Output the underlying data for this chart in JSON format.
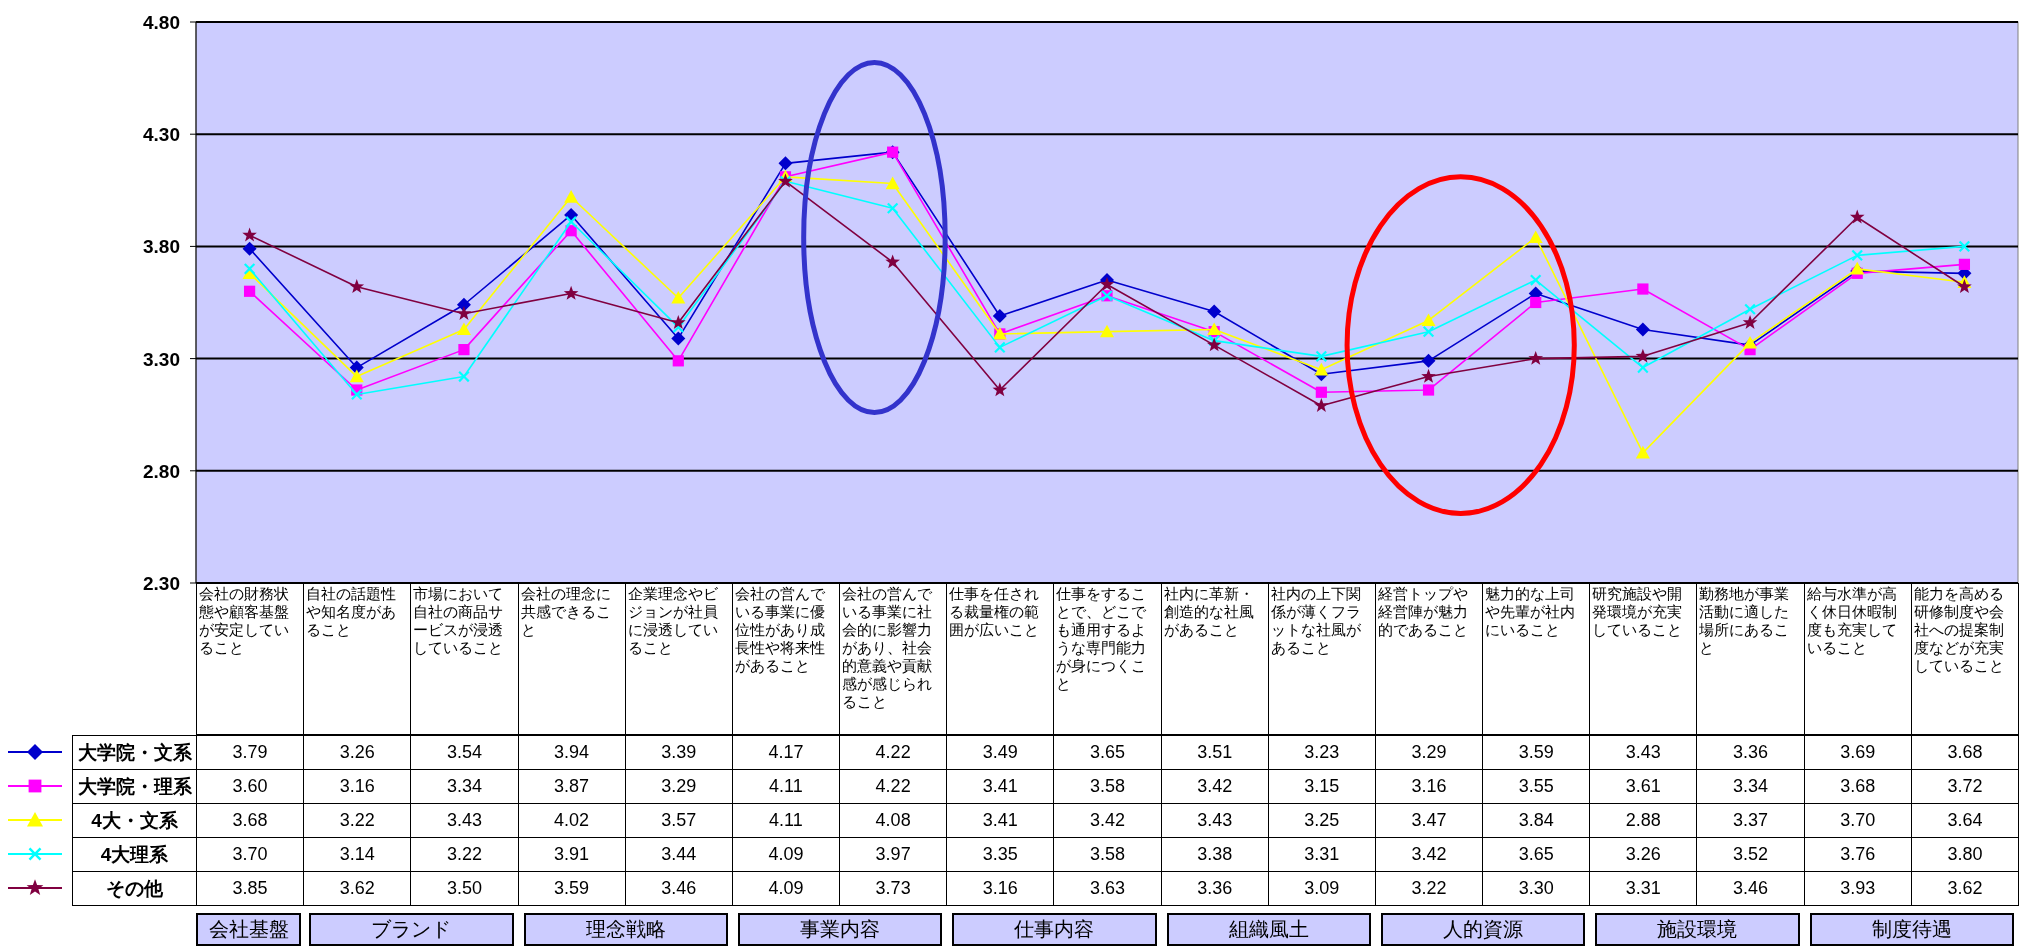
{
  "chart_data": {
    "type": "line",
    "categories": [
      "会社の財務状態や顧客基盤が安定していること",
      "自社の話題性や知名度があること",
      "市場において自社の商品サービスが浸透していること",
      "会社の理念に共感できること",
      "企業理念やビジョンが社員に浸透していること",
      "会社の営んでいる事業に優位性があり成長性や将来性があること",
      "会社の営んでいる事業に社会的に影響力があり、社会的意義や貢献感が感じられること",
      "仕事を任される裁量権の範囲が広いこと",
      "仕事をすることで、どこでも通用するような専門能力が身につくこと",
      "社内に革新・創造的な社風があること",
      "社内の上下関係が薄くフラットな社風があること",
      "経営トップや経営陣が魅力的であること",
      "魅力的な上司や先輩が社内にいること",
      "研究施設や開発環境が充実していること",
      "勤務地が事業活動に適した場所にあること",
      "給与水準が高く休日休暇制度も充実していること",
      "能力を高める研修制度や会社への提案制度などが充実していること"
    ],
    "series": [
      {
        "name": "大学院・文系",
        "color": "#0000cc",
        "marker": "diamond",
        "values": [
          3.79,
          3.26,
          3.54,
          3.94,
          3.39,
          4.17,
          4.22,
          3.49,
          3.65,
          3.51,
          3.23,
          3.29,
          3.59,
          3.43,
          3.36,
          3.69,
          3.68
        ],
        "value_labels": [
          "3.79",
          "3.26",
          "3.54",
          "3.94",
          "3.39",
          "4.17",
          "4.22",
          "3.49",
          "3.65",
          "3.51",
          "3.23",
          "3.29",
          "3.59",
          "3.43",
          "3.36",
          "3.69",
          "3.68"
        ]
      },
      {
        "name": "大学院・理系",
        "color": "#ff00ff",
        "marker": "square",
        "values": [
          3.6,
          3.16,
          3.34,
          3.87,
          3.29,
          4.11,
          4.22,
          3.41,
          3.58,
          3.42,
          3.15,
          3.16,
          3.55,
          3.61,
          3.34,
          3.68,
          3.72
        ],
        "value_labels": [
          "3.60",
          "3.16",
          "3.34",
          "3.87",
          "3.29",
          "4.11",
          "4.22",
          "3.41",
          "3.58",
          "3.42",
          "3.15",
          "3.16",
          "3.55",
          "3.61",
          "3.34",
          "3.68",
          "3.72"
        ]
      },
      {
        "name": "4大・文系",
        "color": "#ffff00",
        "marker": "triangle",
        "values": [
          3.68,
          3.22,
          3.43,
          4.02,
          3.57,
          4.11,
          4.08,
          3.41,
          3.42,
          3.43,
          3.25,
          3.47,
          3.84,
          2.88,
          3.37,
          3.7,
          3.64
        ],
        "value_labels": [
          "3.68",
          "3.22",
          "3.43",
          "4.02",
          "3.57",
          "4.11",
          "4.08",
          "3.41",
          "3.42",
          "3.43",
          "3.25",
          "3.47",
          "3.84",
          "2.88",
          "3.37",
          "3.70",
          "3.64"
        ]
      },
      {
        "name": "4大理系",
        "color": "#00ffff",
        "marker": "cross",
        "values": [
          3.7,
          3.14,
          3.22,
          3.91,
          3.44,
          4.09,
          3.97,
          3.35,
          3.58,
          3.38,
          3.31,
          3.42,
          3.65,
          3.26,
          3.52,
          3.76,
          3.8
        ],
        "value_labels": [
          "3.70",
          "3.14",
          "3.22",
          "3.91",
          "3.44",
          "4.09",
          "3.97",
          "3.35",
          "3.58",
          "3.38",
          "3.31",
          "3.42",
          "3.65",
          "3.26",
          "3.52",
          "3.76",
          "3.80"
        ]
      },
      {
        "name": "その他",
        "color": "#800040",
        "marker": "star",
        "values": [
          3.85,
          3.62,
          3.5,
          3.59,
          3.46,
          4.09,
          3.73,
          3.16,
          3.63,
          3.36,
          3.09,
          3.22,
          3.3,
          3.31,
          3.46,
          3.93,
          3.62
        ],
        "value_labels": [
          "3.85",
          "3.62",
          "3.50",
          "3.59",
          "3.46",
          "4.09",
          "3.73",
          "3.16",
          "3.63",
          "3.36",
          "3.09",
          "3.22",
          "3.30",
          "3.31",
          "3.46",
          "3.93",
          "3.62"
        ]
      }
    ],
    "ylim": [
      2.3,
      4.8
    ],
    "yticks": [
      {
        "value": 2.3,
        "label": "2.30"
      },
      {
        "value": 2.8,
        "label": "2.80"
      },
      {
        "value": 3.3,
        "label": "3.30"
      },
      {
        "value": 3.8,
        "label": "3.80"
      },
      {
        "value": 4.3,
        "label": "4.30"
      },
      {
        "value": 4.8,
        "label": "4.80"
      }
    ],
    "grid": "y",
    "legend": "bottom left",
    "annotations": [
      "会社基盤",
      "ブランド",
      "理念戦略",
      "事業内容",
      "仕事内容",
      "組織風土",
      "人的資源",
      "施設環境",
      "制度待遇"
    ]
  }
}
